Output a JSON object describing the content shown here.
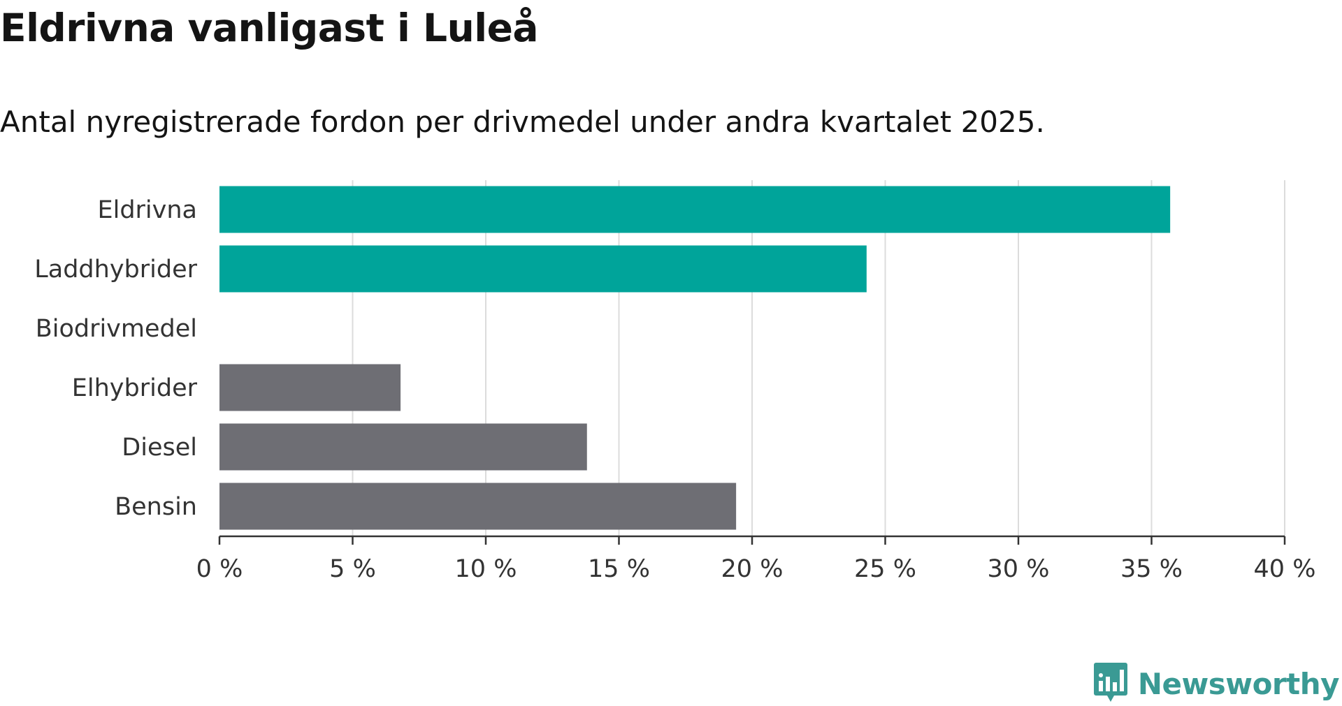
{
  "header": {
    "title": "Eldrivna vanligast i Luleå",
    "subtitle": "Antal nyregistrerade fordon per drivmedel under andra kvartalet 2025."
  },
  "brand": {
    "name": "Newsworthy",
    "icon": "newsworthy-logo-icon",
    "color": "#3a9a94"
  },
  "colors": {
    "highlight": "#00a49a",
    "default": "#6e6e74",
    "grid": "#dcdcdc",
    "axis": "#333333"
  },
  "chart_data": {
    "type": "bar",
    "orientation": "horizontal",
    "title": "Eldrivna vanligast i Luleå",
    "subtitle": "Antal nyregistrerade fordon per drivmedel under andra kvartalet 2025.",
    "categories": [
      "Eldrivna",
      "Laddhybrider",
      "Biodrivmedel",
      "Elhybrider",
      "Diesel",
      "Bensin"
    ],
    "values": [
      35.7,
      24.3,
      0,
      6.8,
      13.8,
      19.4
    ],
    "highlighted": [
      true,
      true,
      false,
      false,
      false,
      false
    ],
    "xlim": [
      0,
      40
    ],
    "xticks": [
      0,
      5,
      10,
      15,
      20,
      25,
      30,
      35,
      40
    ],
    "xtick_labels": [
      "0 %",
      "5 %",
      "10 %",
      "15 %",
      "20 %",
      "25 %",
      "30 %",
      "35 %",
      "40 %"
    ],
    "xlabel": "",
    "ylabel": "",
    "grid": true,
    "legend": "none"
  }
}
